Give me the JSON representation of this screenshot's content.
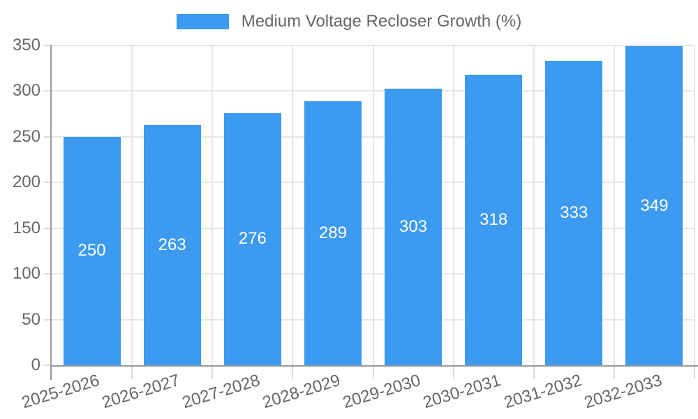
{
  "chart_data": {
    "type": "bar",
    "title": "Medium Voltage Recloser Growth (%)",
    "categories": [
      "2025-2026",
      "2026-2027",
      "2027-2028",
      "2028-2029",
      "2029-2030",
      "2030-2031",
      "2031-2032",
      "2032-2033"
    ],
    "values": [
      250,
      263,
      276,
      289,
      303,
      318,
      333,
      349
    ],
    "xlabel": "",
    "ylabel": "",
    "ylim": [
      0,
      350
    ],
    "ytick_step": 50,
    "grid": true,
    "legend_position": "top",
    "legend_entries": [
      "Medium Voltage Recloser Growth (%)"
    ],
    "bar_color": "#3C9AF0",
    "value_label_color": "#FFFFFF",
    "grid_color": "#E6E6E6",
    "tick_mark_color": "#DCDCDC",
    "axis_color": "#999999",
    "tick_text_color": "#666666"
  }
}
